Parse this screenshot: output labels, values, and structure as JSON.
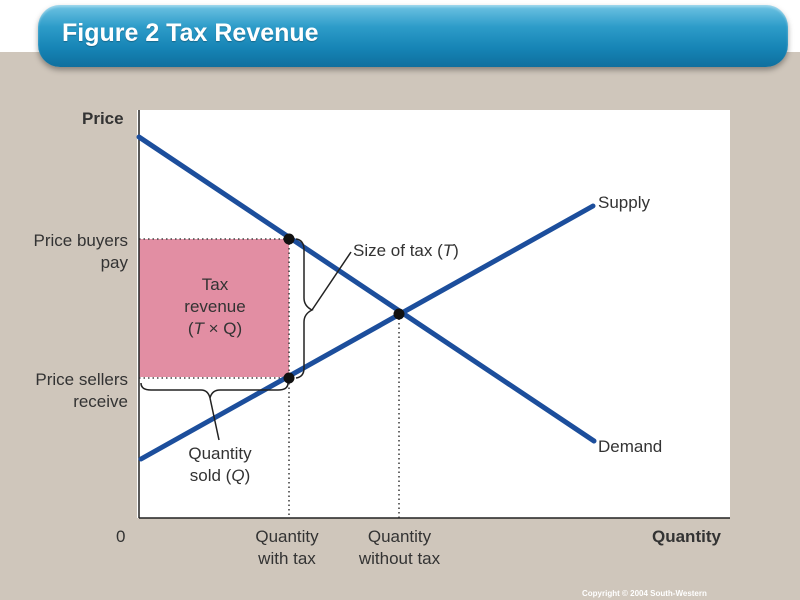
{
  "title": "Figure 2 Tax Revenue",
  "axes": {
    "y_label": "Price",
    "x_label": "Quantity",
    "origin": "0"
  },
  "labels": {
    "price_buyers_pay": [
      "Price buyers",
      "pay"
    ],
    "price_sellers_receive": [
      "Price sellers",
      "receive"
    ],
    "quantity_with_tax": [
      "Quantity",
      "with tax"
    ],
    "quantity_without_tax": [
      "Quantity",
      "without tax"
    ],
    "supply": "Supply",
    "demand": "Demand",
    "size_of_tax": "Size of tax (",
    "size_of_tax_T": "T",
    "size_of_tax_end": ")",
    "tax_revenue": [
      "Tax",
      "revenue",
      "(",
      "T",
      " × Q)"
    ],
    "quantity_sold": [
      "Quantity",
      "sold (",
      "Q",
      ")"
    ]
  },
  "colors": {
    "curves": "#1c4e9c",
    "tax_area": "#e28ea3",
    "title_bar": "#1684b5"
  },
  "copyright": "Copyright © 2004  South-Western"
}
